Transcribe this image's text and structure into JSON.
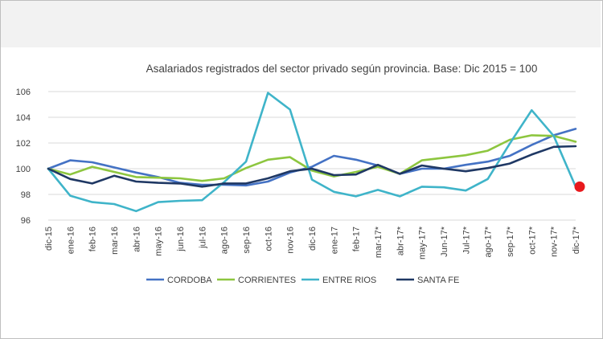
{
  "chart_data": {
    "type": "line",
    "title": "Asalariados registrados del sector privado según provincia. Base: Dic 2015 = 100",
    "categories": [
      "dic-15",
      "ene-16",
      "feb-16",
      "mar-16",
      "abr-16",
      "may-16",
      "jun-16",
      "jul-16",
      "ago-16",
      "sep-16",
      "oct-16",
      "nov-16",
      "dic-16",
      "ene-17",
      "feb-17",
      "mar-17*",
      "abr-17*",
      "may-17*",
      "Jun-17*",
      "Jul-17*",
      "ago-17*",
      "sep-17*",
      "oct-17*",
      "nov-17*",
      "dic-17*"
    ],
    "ylim": [
      96,
      106
    ],
    "yticks": [
      "96",
      "98",
      "100",
      "102",
      "104",
      "106"
    ],
    "grid": true,
    "legend_position": "bottom",
    "series": [
      {
        "name": "CORDOBA",
        "color": "#4472c4",
        "values": [
          100,
          100.65,
          100.5,
          100.1,
          99.7,
          99.35,
          98.9,
          98.75,
          98.75,
          98.7,
          99.0,
          99.7,
          100.15,
          101.0,
          100.7,
          100.25,
          99.6,
          100.0,
          100.0,
          100.3,
          100.55,
          101.0,
          101.85,
          102.6,
          103.1
        ]
      },
      {
        "name": "CORRIENTES",
        "color": "#8dc63f",
        "values": [
          100,
          99.55,
          100.15,
          99.75,
          99.35,
          99.3,
          99.25,
          99.05,
          99.25,
          100.05,
          100.7,
          100.9,
          99.85,
          99.4,
          99.75,
          100.15,
          99.6,
          100.65,
          100.85,
          101.05,
          101.4,
          102.25,
          102.6,
          102.55,
          102.1
        ]
      },
      {
        "name": "ENTRE RIOS",
        "color": "#3fb4c9",
        "values": [
          100,
          97.9,
          97.4,
          97.25,
          96.7,
          97.4,
          97.5,
          97.55,
          98.95,
          100.55,
          105.9,
          104.6,
          99.15,
          98.2,
          97.85,
          98.35,
          97.85,
          98.6,
          98.55,
          98.3,
          99.2,
          101.95,
          104.55,
          102.55,
          98.6
        ]
      },
      {
        "name": "SANTA FE",
        "color": "#1f3864",
        "values": [
          100,
          99.2,
          98.85,
          99.45,
          99.0,
          98.9,
          98.85,
          98.6,
          98.85,
          98.85,
          99.25,
          99.8,
          100.0,
          99.5,
          99.55,
          100.3,
          99.6,
          100.25,
          100.0,
          99.8,
          100.05,
          100.4,
          101.1,
          101.7,
          101.75
        ]
      }
    ],
    "highlight": {
      "series": "ENTRE RIOS",
      "category": "dic-17*",
      "value": 98.6,
      "color": "#e8191d"
    }
  }
}
